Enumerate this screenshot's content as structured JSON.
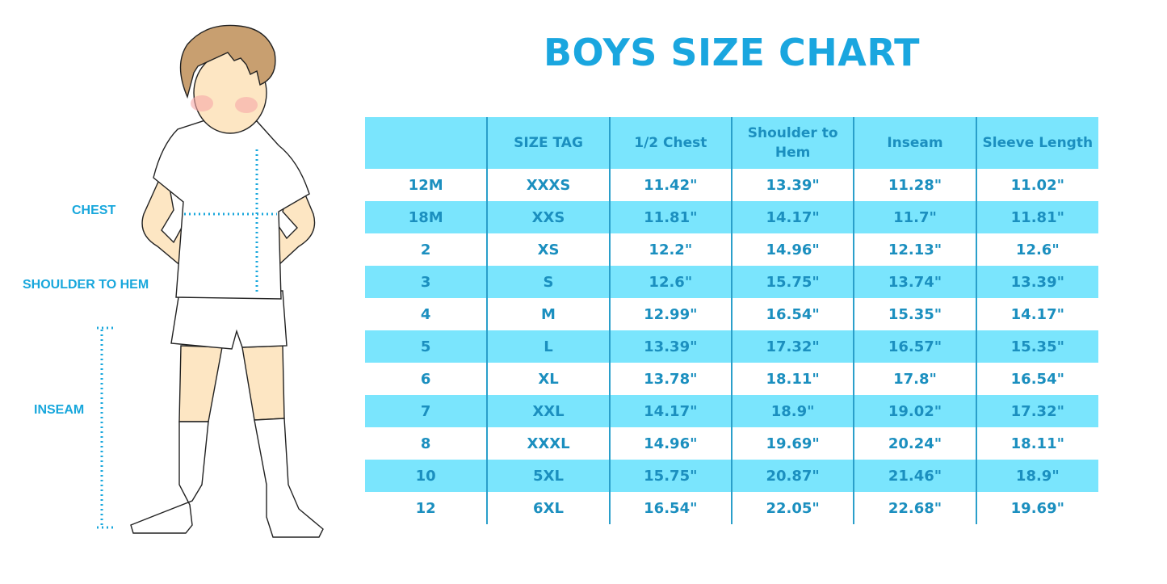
{
  "title": "BOYS SIZE CHART",
  "colors": {
    "accent": "#1aa6df",
    "row_highlight": "#7ae5fd",
    "text": "#1b8fbf"
  },
  "figure": {
    "labels": {
      "chest": "CHEST",
      "shoulder_to_hem": "SHOULDER TO HEM",
      "inseam": "INSEAM"
    }
  },
  "table": {
    "headers": [
      "",
      "SIZE TAG",
      "1/2 Chest",
      "Shoulder to Hem",
      "Inseam",
      "Sleeve Length"
    ],
    "rows": [
      [
        "12M",
        "XXXS",
        "11.42\"",
        "13.39\"",
        "11.28\"",
        "11.02\""
      ],
      [
        "18M",
        "XXS",
        "11.81\"",
        "14.17\"",
        "11.7\"",
        "11.81\""
      ],
      [
        "2",
        "XS",
        "12.2\"",
        "14.96\"",
        "12.13\"",
        "12.6\""
      ],
      [
        "3",
        "S",
        "12.6\"",
        "15.75\"",
        "13.74\"",
        "13.39\""
      ],
      [
        "4",
        "M",
        "12.99\"",
        "16.54\"",
        "15.35\"",
        "14.17\""
      ],
      [
        "5",
        "L",
        "13.39\"",
        "17.32\"",
        "16.57\"",
        "15.35\""
      ],
      [
        "6",
        "XL",
        "13.78\"",
        "18.11\"",
        "17.8\"",
        "16.54\""
      ],
      [
        "7",
        "XXL",
        "14.17\"",
        "18.9\"",
        "19.02\"",
        "17.32\""
      ],
      [
        "8",
        "XXXL",
        "14.96\"",
        "19.69\"",
        "20.24\"",
        "18.11\""
      ],
      [
        "10",
        "5XL",
        "15.75\"",
        "20.87\"",
        "21.46\"",
        "18.9\""
      ],
      [
        "12",
        "6XL",
        "16.54\"",
        "22.05\"",
        "22.68\"",
        "19.69\""
      ]
    ]
  }
}
